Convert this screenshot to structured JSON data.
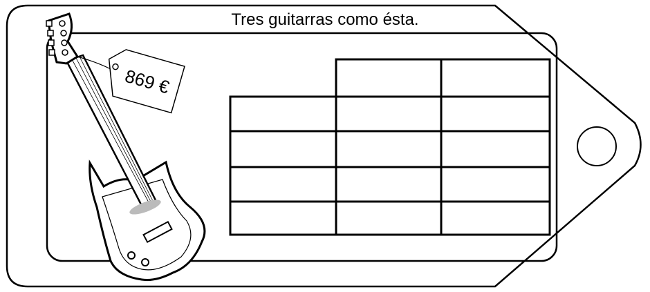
{
  "title": "Tres guitarras como ésta.",
  "price_tag": "869 €"
}
